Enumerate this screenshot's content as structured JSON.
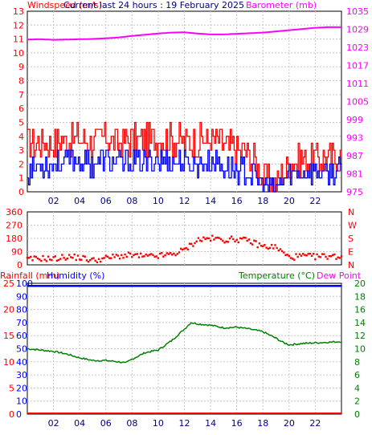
{
  "chart_data": [
    {
      "type": "line",
      "panel": "wind-baro",
      "title": "Current last 24 hours : 19 February 2025",
      "left_label": "Windspeed (m/s)",
      "right_label": "Barometer (mb)",
      "x_ticks": [
        "02",
        "04",
        "06",
        "08",
        "10",
        "12",
        "14",
        "16",
        "18",
        "20",
        "22"
      ],
      "ylim": [
        0,
        13
      ],
      "y_ticks": [
        0,
        1,
        2,
        3,
        4,
        5,
        6,
        7,
        8,
        9,
        10,
        11,
        12,
        13
      ],
      "y2lim": [
        975,
        1035
      ],
      "y2_ticks": [
        975,
        981,
        987,
        993,
        999,
        1005,
        1011,
        1017,
        1023,
        1029,
        1035
      ],
      "colors": {
        "gust": "#ff0000",
        "speed": "#0000ff",
        "barometer": "#ff00ff",
        "left_axis": "#ff0000",
        "right_axis": "#ff00ff"
      },
      "series": [
        {
          "role": "gust",
          "x": [
            0,
            1,
            2,
            3,
            4,
            5,
            6,
            7,
            8,
            9,
            10,
            11,
            12,
            13,
            14,
            15,
            16,
            17,
            18,
            19,
            20,
            21,
            22,
            23,
            24
          ],
          "y": [
            3.5,
            3.6,
            3.4,
            3.8,
            3.9,
            3.6,
            3.9,
            3.5,
            3.8,
            3.6,
            3.9,
            3.8,
            3.7,
            3.6,
            3.8,
            3.4,
            3.0,
            2.8,
            1.0,
            0.5,
            2.0,
            2.4,
            2.4,
            2.4,
            2.6
          ]
        },
        {
          "role": "speed",
          "x": [
            0,
            1,
            2,
            3,
            4,
            5,
            6,
            7,
            8,
            9,
            10,
            11,
            12,
            13,
            14,
            15,
            16,
            17,
            18,
            19,
            20,
            21,
            22,
            23,
            24
          ],
          "y": [
            1.5,
            2.0,
            2.0,
            2.2,
            2.3,
            2.0,
            2.3,
            1.9,
            2.2,
            2.0,
            2.3,
            2.2,
            2.1,
            2.0,
            2.2,
            1.8,
            1.6,
            1.3,
            0.5,
            0.2,
            1.2,
            1.4,
            1.4,
            1.3,
            1.5
          ]
        },
        {
          "role": "barometer",
          "x": [
            0,
            1,
            2,
            3,
            4,
            5,
            6,
            7,
            8,
            9,
            10,
            11,
            12,
            13,
            14,
            15,
            16,
            17,
            18,
            19,
            20,
            21,
            22,
            23,
            24
          ],
          "y": [
            1025.6,
            1025.7,
            1025.5,
            1025.6,
            1025.7,
            1025.8,
            1026.0,
            1026.3,
            1026.8,
            1027.2,
            1027.6,
            1027.9,
            1028.0,
            1027.6,
            1027.3,
            1027.3,
            1027.5,
            1027.7,
            1027.9,
            1028.3,
            1028.7,
            1029.1,
            1029.5,
            1029.7,
            1029.7
          ]
        }
      ]
    },
    {
      "type": "scatter",
      "panel": "wind-direction",
      "ylim": [
        0,
        360
      ],
      "y_ticks": [
        0,
        90,
        180,
        270,
        360
      ],
      "compass_labels": [
        "N",
        "E",
        "S",
        "W",
        "N"
      ],
      "colors": {
        "points": "#ff0000",
        "left_axis": "#ff0000",
        "right_axis": "#ff0000"
      },
      "series": [
        {
          "role": "direction",
          "x": [
            0,
            1,
            2,
            3,
            4,
            5,
            6,
            7,
            8,
            9,
            10,
            11,
            12,
            13,
            14,
            15,
            16,
            17,
            18,
            19,
            20,
            21,
            22,
            23,
            24
          ],
          "y": [
            35,
            45,
            40,
            55,
            50,
            30,
            45,
            60,
            65,
            55,
            60,
            70,
            100,
            170,
            180,
            170,
            175,
            160,
            125,
            120,
            50,
            60,
            55,
            60,
            55
          ]
        }
      ]
    },
    {
      "type": "line",
      "panel": "temp-humidity-rain",
      "rain_label": "Rainfall (mm)",
      "humidity_label": "Humidity (%)",
      "temperature_label": "Temperature (°C)",
      "dewpoint_label": "Dew Point",
      "x_ticks": [
        "02",
        "04",
        "06",
        "08",
        "10",
        "12",
        "14",
        "16",
        "18",
        "20",
        "22"
      ],
      "rain_ticks": [
        0,
        5,
        10,
        15,
        20,
        25
      ],
      "humidity_ticks": [
        0,
        10,
        20,
        30,
        40,
        50,
        60,
        70,
        80,
        90,
        100
      ],
      "y2lim": [
        0,
        20
      ],
      "y2_ticks": [
        0,
        2,
        4,
        6,
        8,
        10,
        12,
        14,
        16,
        18,
        20
      ],
      "colors": {
        "temperature": "#008000",
        "humidity": "#0000ff",
        "rainfall": "#ff0000",
        "dewpoint": "#ff00ff",
        "rain_axis": "#ff0000",
        "humidity_axis": "#0000ff",
        "temperature_axis": "#008000"
      },
      "series": [
        {
          "role": "temperature",
          "x": [
            0,
            1,
            2,
            3,
            4,
            5,
            6,
            7,
            7.5,
            8,
            9,
            10,
            11,
            12,
            12.5,
            13,
            14,
            15,
            16,
            17,
            18,
            19,
            19.5,
            20,
            21,
            22,
            23,
            24
          ],
          "y": [
            10.0,
            9.8,
            9.6,
            9.2,
            8.6,
            8.2,
            8.2,
            8.0,
            7.8,
            8.4,
            9.4,
            9.8,
            11.2,
            13.0,
            14.0,
            13.8,
            13.6,
            13.2,
            13.3,
            13.0,
            12.6,
            11.6,
            11.0,
            10.6,
            10.8,
            10.9,
            11.0,
            11.1
          ]
        },
        {
          "role": "humidity",
          "x": [
            0,
            24
          ],
          "y": [
            98,
            98
          ]
        },
        {
          "role": "rainfall",
          "x": [
            0,
            24
          ],
          "y": [
            0,
            0
          ]
        }
      ]
    }
  ]
}
